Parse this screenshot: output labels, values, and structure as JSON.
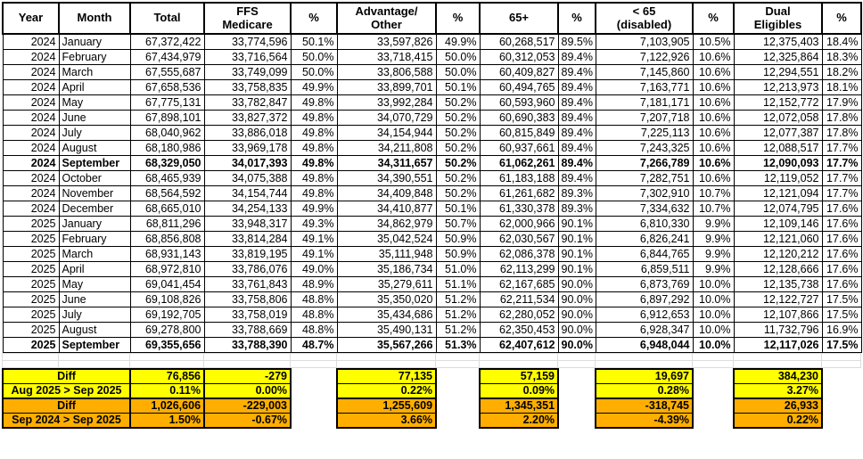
{
  "colors": {
    "highlight_yellow": "#FFFF00",
    "summary_orange": "#FFAE00",
    "border_black": "#000000",
    "gridline_gray": "#DCDCDC"
  },
  "table": {
    "column_keys": [
      "year",
      "month",
      "total",
      "ffs-medicare",
      "ffs-pct",
      "advantage-other",
      "advantage-pct",
      "65plus",
      "65plus-pct",
      "under65-disabled",
      "under65-pct",
      "dual-eligibles",
      "dual-pct"
    ],
    "columns": [
      "Year",
      "Month",
      "Total",
      "FFS\nMedicare",
      "%",
      "Advantage/\nOther",
      "%",
      "65+",
      "%",
      "< 65\n(disabled)",
      "%",
      "Dual\nEligibles",
      "%"
    ],
    "rows": [
      {
        "style": "normal",
        "cells": [
          "2024",
          "January",
          "67,372,422",
          "33,774,596",
          "50.1%",
          "33,597,826",
          "49.9%",
          "60,268,517",
          "89.5%",
          "7,103,905",
          "10.5%",
          "12,375,403",
          "18.4%"
        ]
      },
      {
        "style": "normal",
        "cells": [
          "2024",
          "February",
          "67,434,979",
          "33,716,564",
          "50.0%",
          "33,718,415",
          "50.0%",
          "60,312,053",
          "89.4%",
          "7,122,926",
          "10.6%",
          "12,325,864",
          "18.3%"
        ]
      },
      {
        "style": "normal",
        "cells": [
          "2024",
          "March",
          "67,555,687",
          "33,749,099",
          "50.0%",
          "33,806,588",
          "50.0%",
          "60,409,827",
          "89.4%",
          "7,145,860",
          "10.6%",
          "12,294,551",
          "18.2%"
        ]
      },
      {
        "style": "normal",
        "cells": [
          "2024",
          "April",
          "67,658,536",
          "33,758,835",
          "49.9%",
          "33,899,701",
          "50.1%",
          "60,494,765",
          "89.4%",
          "7,163,771",
          "10.6%",
          "12,213,973",
          "18.1%"
        ]
      },
      {
        "style": "normal",
        "cells": [
          "2024",
          "May",
          "67,775,131",
          "33,782,847",
          "49.8%",
          "33,992,284",
          "50.2%",
          "60,593,960",
          "89.4%",
          "7,181,171",
          "10.6%",
          "12,152,772",
          "17.9%"
        ]
      },
      {
        "style": "normal",
        "cells": [
          "2024",
          "June",
          "67,898,101",
          "33,827,372",
          "49.8%",
          "34,070,729",
          "50.2%",
          "60,690,383",
          "89.4%",
          "7,207,718",
          "10.6%",
          "12,072,058",
          "17.8%"
        ]
      },
      {
        "style": "normal",
        "cells": [
          "2024",
          "July",
          "68,040,962",
          "33,886,018",
          "49.8%",
          "34,154,944",
          "50.2%",
          "60,815,849",
          "89.4%",
          "7,225,113",
          "10.6%",
          "12,077,387",
          "17.8%"
        ]
      },
      {
        "style": "normal",
        "cells": [
          "2024",
          "August",
          "68,180,986",
          "33,969,178",
          "49.8%",
          "34,211,808",
          "50.2%",
          "60,937,661",
          "89.4%",
          "7,243,325",
          "10.6%",
          "12,088,517",
          "17.7%"
        ]
      },
      {
        "style": "bold",
        "cells": [
          "2024",
          "September",
          "68,329,050",
          "34,017,393",
          "49.8%",
          "34,311,657",
          "50.2%",
          "61,062,261",
          "89.4%",
          "7,266,789",
          "10.6%",
          "12,090,093",
          "17.7%"
        ]
      },
      {
        "style": "normal",
        "cells": [
          "2024",
          "October",
          "68,465,939",
          "34,075,388",
          "49.8%",
          "34,390,551",
          "50.2%",
          "61,183,188",
          "89.4%",
          "7,282,751",
          "10.6%",
          "12,119,052",
          "17.7%"
        ]
      },
      {
        "style": "normal",
        "cells": [
          "2024",
          "November",
          "68,564,592",
          "34,154,744",
          "49.8%",
          "34,409,848",
          "50.2%",
          "61,261,682",
          "89.3%",
          "7,302,910",
          "10.7%",
          "12,121,094",
          "17.7%"
        ]
      },
      {
        "style": "normal",
        "cells": [
          "2024",
          "December",
          "68,665,010",
          "34,254,133",
          "49.9%",
          "34,410,877",
          "50.1%",
          "61,330,378",
          "89.3%",
          "7,334,632",
          "10.7%",
          "12,074,795",
          "17.6%"
        ]
      },
      {
        "style": "normal",
        "cells": [
          "2025",
          "January",
          "68,811,296",
          "33,948,317",
          "49.3%",
          "34,862,979",
          "50.7%",
          "62,000,966",
          "90.1%",
          "6,810,330",
          "9.9%",
          "12,109,146",
          "17.6%"
        ]
      },
      {
        "style": "normal",
        "cells": [
          "2025",
          "February",
          "68,856,808",
          "33,814,284",
          "49.1%",
          "35,042,524",
          "50.9%",
          "62,030,567",
          "90.1%",
          "6,826,241",
          "9.9%",
          "12,121,060",
          "17.6%"
        ]
      },
      {
        "style": "normal",
        "cells": [
          "2025",
          "March",
          "68,931,143",
          "33,819,195",
          "49.1%",
          "35,111,948",
          "50.9%",
          "62,086,378",
          "90.1%",
          "6,844,765",
          "9.9%",
          "12,120,212",
          "17.6%"
        ]
      },
      {
        "style": "normal",
        "cells": [
          "2025",
          "April",
          "68,972,810",
          "33,786,076",
          "49.0%",
          "35,186,734",
          "51.0%",
          "62,113,299",
          "90.1%",
          "6,859,511",
          "9.9%",
          "12,128,666",
          "17.6%"
        ]
      },
      {
        "style": "normal",
        "cells": [
          "2025",
          "May",
          "69,041,454",
          "33,761,843",
          "48.9%",
          "35,279,611",
          "51.1%",
          "62,167,685",
          "90.0%",
          "6,873,769",
          "10.0%",
          "12,135,738",
          "17.6%"
        ]
      },
      {
        "style": "normal",
        "cells": [
          "2025",
          "June",
          "69,108,826",
          "33,758,806",
          "48.8%",
          "35,350,020",
          "51.2%",
          "62,211,534",
          "90.0%",
          "6,897,292",
          "10.0%",
          "12,122,727",
          "17.5%"
        ]
      },
      {
        "style": "normal",
        "cells": [
          "2025",
          "July",
          "69,192,705",
          "33,758,019",
          "48.8%",
          "35,434,686",
          "51.2%",
          "62,280,052",
          "90.0%",
          "6,912,653",
          "10.0%",
          "12,107,866",
          "17.5%"
        ]
      },
      {
        "style": "normal",
        "cells": [
          "2025",
          "August",
          "69,278,800",
          "33,788,669",
          "48.8%",
          "35,490,131",
          "51.2%",
          "62,350,453",
          "90.0%",
          "6,928,347",
          "10.0%",
          "11,732,796",
          "16.9%"
        ]
      },
      {
        "style": "highlight",
        "cells": [
          "2025",
          "September",
          "69,355,656",
          "33,788,390",
          "48.7%",
          "35,567,266",
          "51.3%",
          "62,407,612",
          "90.0%",
          "6,948,044",
          "10.0%",
          "12,117,026",
          "17.5%"
        ]
      }
    ]
  },
  "summary": {
    "rows": [
      {
        "style": "yellow",
        "label": "Diff",
        "values": [
          "76,856",
          "-279",
          "77,135",
          "57,159",
          "19,697",
          "384,230"
        ]
      },
      {
        "style": "yellow",
        "label": "Aug 2025 > Sep 2025",
        "values": [
          "0.11%",
          "0.00%",
          "0.22%",
          "0.09%",
          "0.28%",
          "3.27%"
        ]
      },
      {
        "style": "orange",
        "label": "Diff",
        "values": [
          "1,026,606",
          "-229,003",
          "1,255,609",
          "1,345,351",
          "-318,745",
          "26,933"
        ]
      },
      {
        "style": "orange",
        "label": "Sep 2024 > Sep 2025",
        "values": [
          "1.50%",
          "-0.67%",
          "3.66%",
          "2.20%",
          "-4.39%",
          "0.22%"
        ]
      }
    ]
  }
}
